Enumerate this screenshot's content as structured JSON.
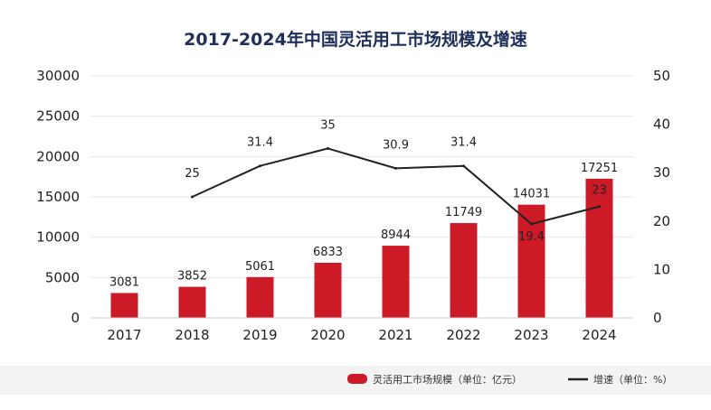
{
  "chart_data": {
    "type": "bar",
    "title": "2017-2024年中国灵活用工市场规模及增速",
    "categories": [
      "2017",
      "2018",
      "2019",
      "2020",
      "2021",
      "2022",
      "2023",
      "2024"
    ],
    "series": [
      {
        "name": "灵活用工市场规模（单位：亿元）",
        "type": "bar",
        "axis": "left",
        "values": [
          3081,
          3852,
          5061,
          6833,
          8944,
          11749,
          14031,
          17251
        ],
        "value_labels": [
          "3081",
          "3852",
          "5061",
          "6833",
          "8944",
          "11749",
          "14031",
          "17251"
        ],
        "color": "#cc1a26"
      },
      {
        "name": "增速（单位：%）",
        "type": "line",
        "axis": "right",
        "values": [
          null,
          25,
          31.4,
          35,
          30.9,
          31.4,
          19.4,
          23
        ],
        "value_labels": [
          "",
          "25",
          "31.4",
          "35",
          "30.9",
          "31.4",
          "19.4",
          "23"
        ],
        "color": "#222222"
      }
    ],
    "y_left": {
      "ylim": [
        0,
        30000
      ],
      "ticks": [
        "0",
        "5000",
        "10000",
        "15000",
        "20000",
        "25000",
        "30000"
      ]
    },
    "y_right": {
      "ylim": [
        0,
        50
      ],
      "ticks": [
        "0",
        "10",
        "20",
        "30",
        "40",
        "50"
      ]
    },
    "grid": true,
    "legend_position": "bottom"
  }
}
